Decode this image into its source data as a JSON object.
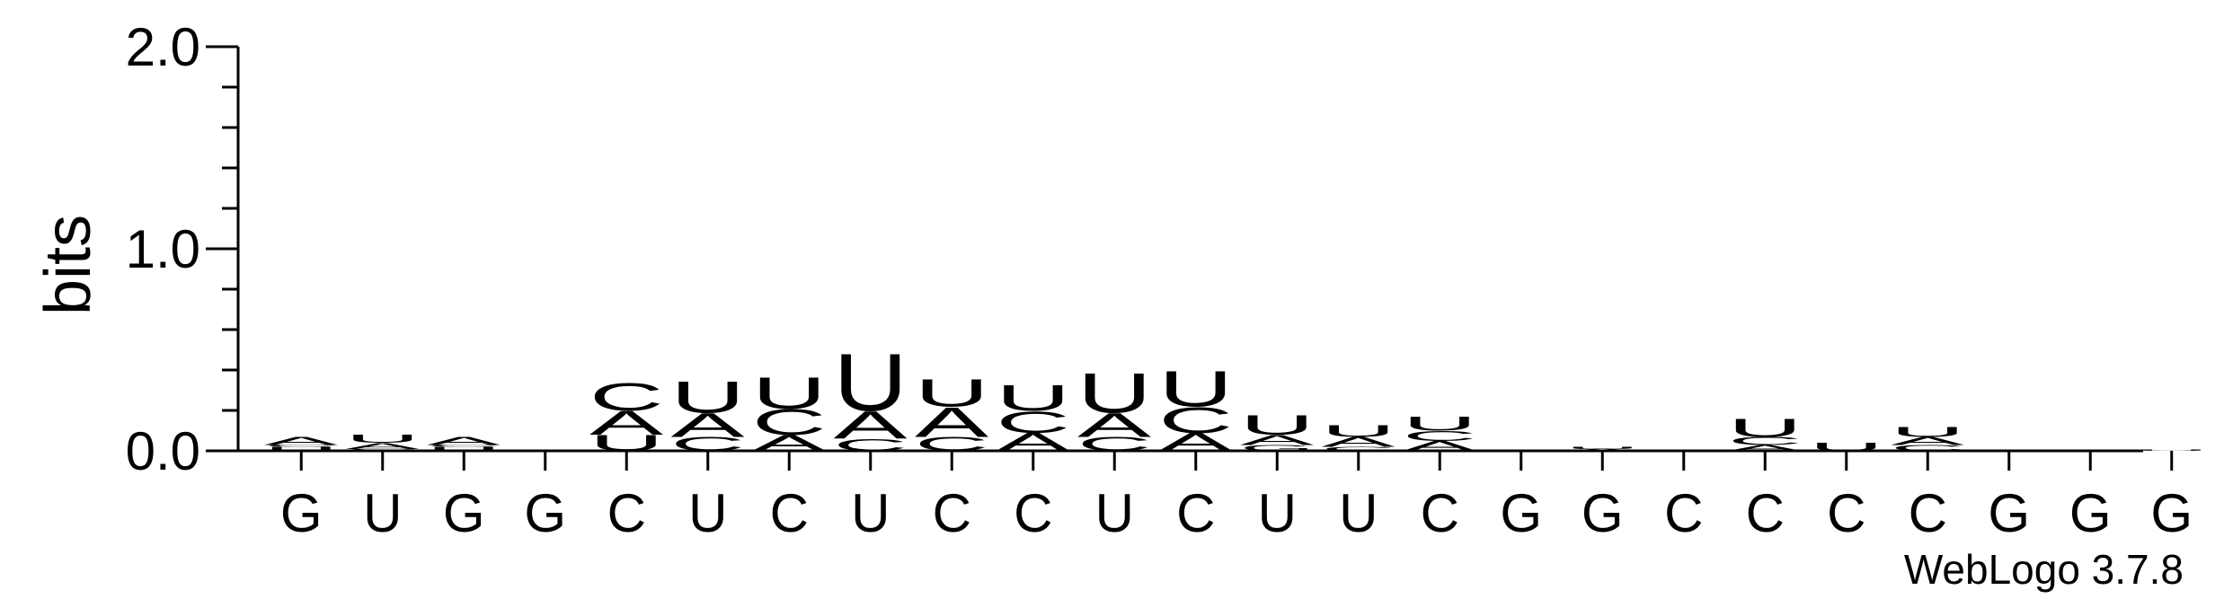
{
  "chart_data": {
    "type": "sequence-logo",
    "ylabel": "bits",
    "ylim": [
      0,
      2.0
    ],
    "yticks": [
      {
        "value": 0.0,
        "label": "0.0"
      },
      {
        "value": 1.0,
        "label": "1.0"
      },
      {
        "value": 2.0,
        "label": "2.0"
      }
    ],
    "x_tick_labels": [
      "G",
      "U",
      "G",
      "G",
      "C",
      "U",
      "C",
      "U",
      "C",
      "C",
      "U",
      "C",
      "U",
      "U",
      "C",
      "G",
      "G",
      "C",
      "C",
      "C",
      "C",
      "G",
      "G",
      "G"
    ],
    "colors": {
      "A": "#ff8c00",
      "U": "#ff8c00",
      "C": "#0000ff",
      "G": "#ff8c00"
    },
    "columns": [
      [
        {
          "letter": "U",
          "bits": 0.02
        },
        {
          "letter": "C",
          "bits": 0.01
        },
        {
          "letter": "A",
          "bits": 0.04
        }
      ],
      [
        {
          "letter": "C",
          "bits": 0.01
        },
        {
          "letter": "A",
          "bits": 0.03
        },
        {
          "letter": "U",
          "bits": 0.04
        }
      ],
      [
        {
          "letter": "U",
          "bits": 0.02
        },
        {
          "letter": "C",
          "bits": 0.01
        },
        {
          "letter": "A",
          "bits": 0.04
        }
      ],
      [],
      [
        {
          "letter": "U",
          "bits": 0.08
        },
        {
          "letter": "A",
          "bits": 0.12
        },
        {
          "letter": "C",
          "bits": 0.14
        }
      ],
      [
        {
          "letter": "C",
          "bits": 0.07
        },
        {
          "letter": "A",
          "bits": 0.12
        },
        {
          "letter": "U",
          "bits": 0.16
        }
      ],
      [
        {
          "letter": "A",
          "bits": 0.08
        },
        {
          "letter": "C",
          "bits": 0.13
        },
        {
          "letter": "U",
          "bits": 0.16
        }
      ],
      [
        {
          "letter": "C",
          "bits": 0.06
        },
        {
          "letter": "A",
          "bits": 0.14
        },
        {
          "letter": "U",
          "bits": 0.29
        }
      ],
      [
        {
          "letter": "C",
          "bits": 0.07
        },
        {
          "letter": "A",
          "bits": 0.15
        },
        {
          "letter": "U",
          "bits": 0.14
        }
      ],
      [
        {
          "letter": "A",
          "bits": 0.09
        },
        {
          "letter": "C",
          "bits": 0.11
        },
        {
          "letter": "U",
          "bits": 0.13
        }
      ],
      [
        {
          "letter": "C",
          "bits": 0.07
        },
        {
          "letter": "A",
          "bits": 0.12
        },
        {
          "letter": "U",
          "bits": 0.2
        }
      ],
      [
        {
          "letter": "A",
          "bits": 0.09
        },
        {
          "letter": "C",
          "bits": 0.13
        },
        {
          "letter": "U",
          "bits": 0.18
        }
      ],
      [
        {
          "letter": "G",
          "bits": 0.03
        },
        {
          "letter": "A",
          "bits": 0.05
        },
        {
          "letter": "U",
          "bits": 0.1
        }
      ],
      [
        {
          "letter": "C",
          "bits": 0.02
        },
        {
          "letter": "A",
          "bits": 0.05
        },
        {
          "letter": "U",
          "bits": 0.06
        }
      ],
      [
        {
          "letter": "A",
          "bits": 0.05
        },
        {
          "letter": "C",
          "bits": 0.05
        },
        {
          "letter": "U",
          "bits": 0.07
        }
      ],
      [],
      [
        {
          "letter": "A",
          "bits": 0.01
        },
        {
          "letter": "U",
          "bits": 0.01
        }
      ],
      [],
      [
        {
          "letter": "A",
          "bits": 0.03
        },
        {
          "letter": "C",
          "bits": 0.04
        },
        {
          "letter": "U",
          "bits": 0.09
        }
      ],
      [
        {
          "letter": "U",
          "bits": 0.04
        }
      ],
      [
        {
          "letter": "C",
          "bits": 0.03
        },
        {
          "letter": "A",
          "bits": 0.04
        },
        {
          "letter": "U",
          "bits": 0.05
        }
      ],
      [],
      [
        {
          "letter": "A",
          "bits": 0.005
        }
      ],
      [
        {
          "letter": "U",
          "bits": 0.005
        }
      ]
    ]
  },
  "credit": "WebLogo 3.7.8"
}
